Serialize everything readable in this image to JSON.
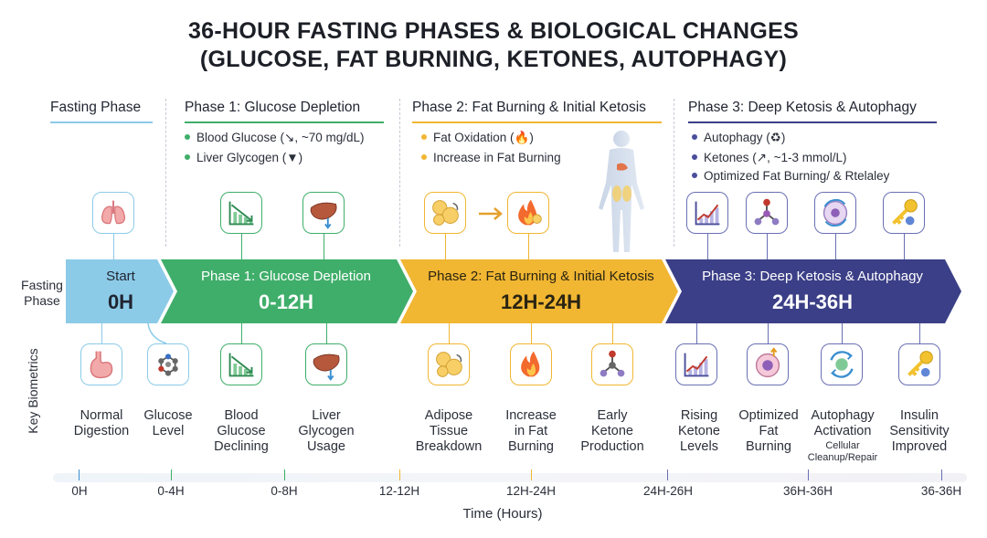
{
  "title": {
    "line1": "36-HOUR FASTING PHASES & BIOLOGICAL CHANGES",
    "line2": "(GLUCOSE, FAT BURNING, KETONES, AUTOPHAGY)"
  },
  "headers": {
    "col0": "Fasting Phase",
    "phase1": "Phase 1: Glucose Depletion",
    "phase2": "Phase 2: Fat Burning & Initial Ketosis",
    "phase3": "Phase 3: Deep Ketosis & Autophagy"
  },
  "bullets": {
    "phase1": [
      "Blood Glucose (↘, ~70 mg/dL)",
      "Liver Glycogen (▼)"
    ],
    "phase2": [
      "Fat Oxidation (🔥)",
      "Increase in Fat Burning"
    ],
    "phase3": [
      "Autophagy (♻)",
      "Ketones (↗, ~1-3 mmol/L)",
      "Optimized Fat Burning/ & Rtelaley"
    ]
  },
  "row_labels": {
    "fasting_phase": "Fasting Phase",
    "fasting_phase_1": "Fasting",
    "fasting_phase_2": "Phase",
    "key_biometrics": "Key Biometrics"
  },
  "band": {
    "start": {
      "label": "Start",
      "hours": "0H"
    },
    "phase1": {
      "label": "Phase 1: Glucose Depletion",
      "hours": "0-12H"
    },
    "phase2": {
      "label": "Phase 2: Fat Burning & Initial Ketosis",
      "hours": "12H-24H"
    },
    "phase3": {
      "label": "Phase 3: Deep Ketosis & Autophagy",
      "hours": "24H-36H"
    }
  },
  "biometrics": [
    {
      "l1": "Normal",
      "l2": "Digestion",
      "l3": ""
    },
    {
      "l1": "Glucose",
      "l2": "Level",
      "l3": ""
    },
    {
      "l1": "Blood",
      "l2": "Glucose",
      "l3": "Declining"
    },
    {
      "l1": "Liver",
      "l2": "Glycogen",
      "l3": "Usage"
    },
    {
      "l1": "Adipose",
      "l2": "Tissue",
      "l3": "Breakdown"
    },
    {
      "l1": "Increase",
      "l2": "in Fat",
      "l3": "Burning"
    },
    {
      "l1": "Early",
      "l2": "Ketone",
      "l3": "Production"
    },
    {
      "l1": "Rising",
      "l2": "Ketone",
      "l3": "Levels"
    },
    {
      "l1": "Optimized",
      "l2": "Fat",
      "l3": "Burning"
    },
    {
      "l1": "Autophagy",
      "l2": "Activation",
      "l3": "",
      "sub1": "Cellular",
      "sub2": "Cleanup/Repair"
    },
    {
      "l1": "Insulin",
      "l2": "Sensitivity",
      "l3": "Improved"
    }
  ],
  "timeline": {
    "ticks": [
      "0H",
      "0-4H",
      "0-8H",
      "12-12H",
      "12H-24H",
      "24H-26H",
      "36H-36H",
      "36-36H"
    ],
    "axis_label": "Time (Hours)"
  },
  "colors": {
    "start": "#8ccbe8",
    "phase1": "#3fae6a",
    "phase2": "#f1b632",
    "phase3": "#3b3f87",
    "accent_red": "#e74c3c"
  },
  "icons": {
    "top": [
      "lungs-icon",
      "chart-down-icon",
      "liver-icon",
      "fat-cells-icon",
      "fire-icon",
      "chart-up-icon",
      "molecule-icon",
      "cell-recycle-icon",
      "key-icon"
    ],
    "bottom": [
      "stomach-icon",
      "glucose-molecule-icon",
      "chart-down-icon",
      "liver-icon",
      "fat-cells-icon",
      "fire-icon",
      "ketone-molecule-icon",
      "chart-up-icon",
      "cell-icon",
      "recycle-icon",
      "key-icon"
    ]
  }
}
